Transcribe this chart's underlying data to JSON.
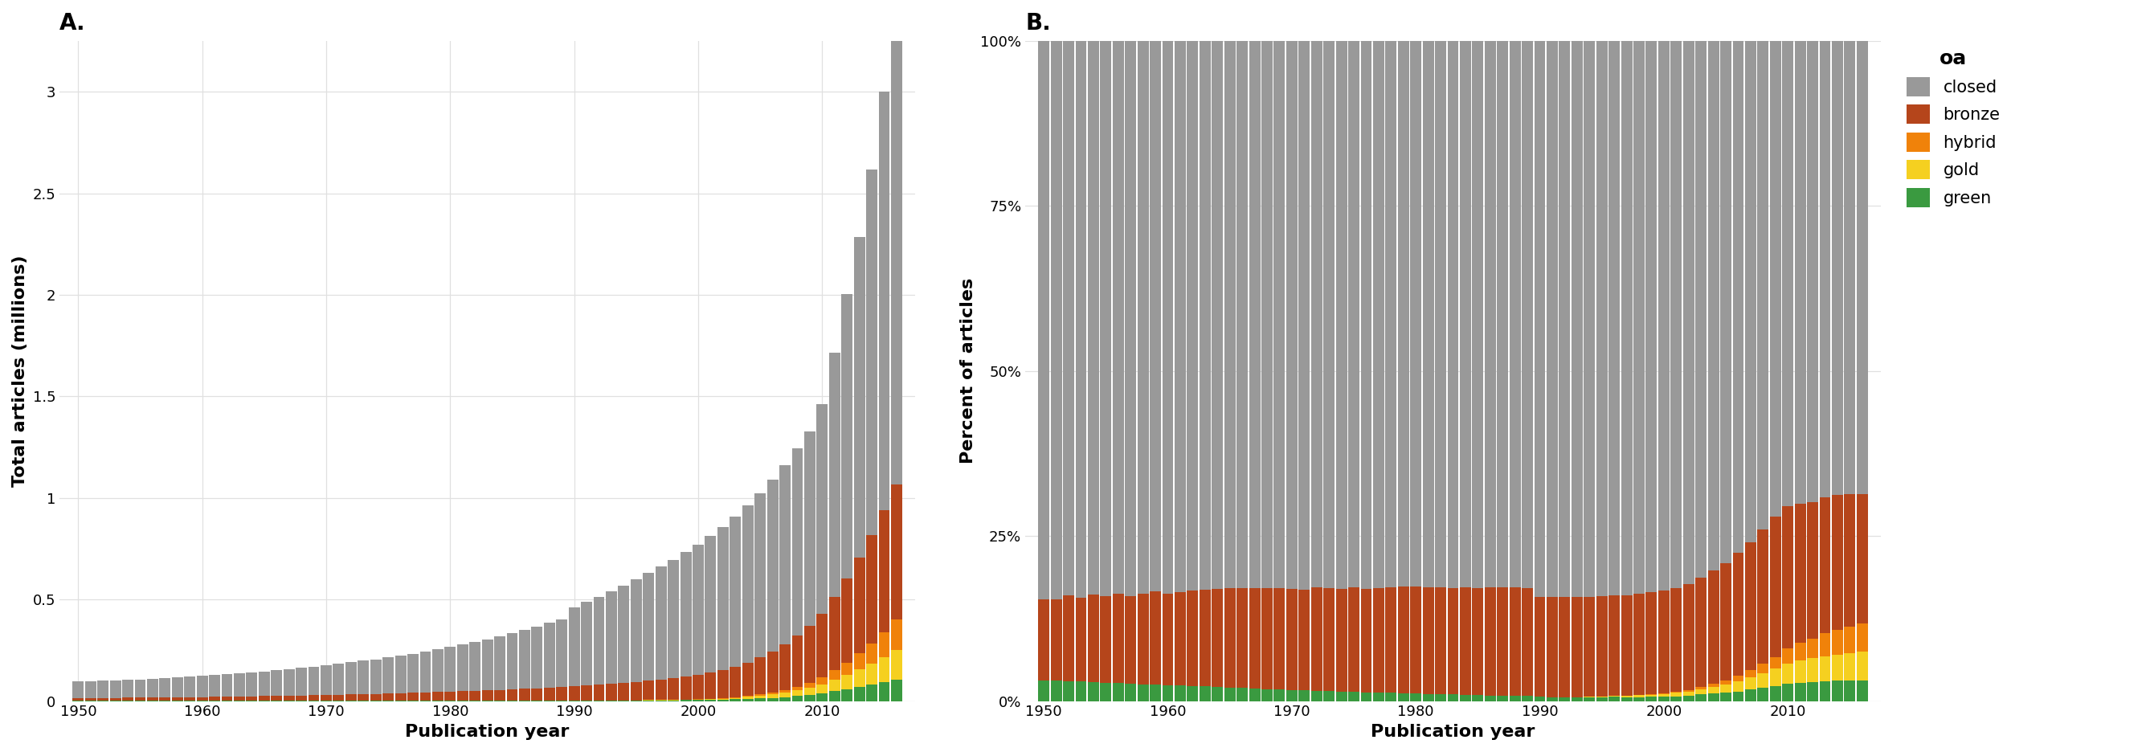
{
  "years": [
    1950,
    1951,
    1952,
    1953,
    1954,
    1955,
    1956,
    1957,
    1958,
    1959,
    1960,
    1961,
    1962,
    1963,
    1964,
    1965,
    1966,
    1967,
    1968,
    1969,
    1970,
    1971,
    1972,
    1973,
    1974,
    1975,
    1976,
    1977,
    1978,
    1979,
    1980,
    1981,
    1982,
    1983,
    1984,
    1985,
    1986,
    1987,
    1988,
    1989,
    1990,
    1991,
    1992,
    1993,
    1994,
    1995,
    1996,
    1997,
    1998,
    1999,
    2000,
    2001,
    2002,
    2003,
    2004,
    2005,
    2006,
    2007,
    2008,
    2009,
    2010,
    2011,
    2012,
    2013,
    2014,
    2015,
    2016
  ],
  "green": [
    0.003,
    0.003,
    0.003,
    0.003,
    0.003,
    0.003,
    0.003,
    0.003,
    0.003,
    0.003,
    0.003,
    0.003,
    0.003,
    0.003,
    0.003,
    0.003,
    0.003,
    0.003,
    0.003,
    0.003,
    0.003,
    0.003,
    0.003,
    0.003,
    0.003,
    0.003,
    0.003,
    0.003,
    0.003,
    0.003,
    0.003,
    0.003,
    0.003,
    0.003,
    0.003,
    0.003,
    0.003,
    0.003,
    0.003,
    0.003,
    0.003,
    0.003,
    0.003,
    0.003,
    0.003,
    0.003,
    0.004,
    0.004,
    0.004,
    0.005,
    0.005,
    0.006,
    0.007,
    0.009,
    0.011,
    0.013,
    0.016,
    0.02,
    0.025,
    0.03,
    0.038,
    0.048,
    0.058,
    0.068,
    0.08,
    0.092,
    0.105
  ],
  "gold": [
    0.0,
    0.0,
    0.0,
    0.0,
    0.0,
    0.0,
    0.0,
    0.0,
    0.0,
    0.0,
    0.0,
    0.0,
    0.0,
    0.0,
    0.0,
    0.0,
    0.0,
    0.0,
    0.0,
    0.0,
    0.0,
    0.0,
    0.0,
    0.0,
    0.0,
    0.0,
    0.0,
    0.0,
    0.0,
    0.0,
    0.0,
    0.0,
    0.0,
    0.0,
    0.0,
    0.0,
    0.0,
    0.0,
    0.0,
    0.0,
    0.0,
    0.0,
    0.0,
    0.0,
    0.001,
    0.001,
    0.001,
    0.001,
    0.002,
    0.002,
    0.003,
    0.004,
    0.005,
    0.007,
    0.01,
    0.013,
    0.017,
    0.022,
    0.028,
    0.035,
    0.045,
    0.058,
    0.072,
    0.088,
    0.105,
    0.125,
    0.148
  ],
  "hybrid": [
    0.0,
    0.0,
    0.0,
    0.0,
    0.0,
    0.0,
    0.0,
    0.0,
    0.0,
    0.0,
    0.0,
    0.0,
    0.0,
    0.0,
    0.0,
    0.0,
    0.0,
    0.0,
    0.0,
    0.0,
    0.0,
    0.0,
    0.0,
    0.0,
    0.0,
    0.0,
    0.0,
    0.0,
    0.0,
    0.0,
    0.0,
    0.0,
    0.0,
    0.0,
    0.0,
    0.0,
    0.0,
    0.0,
    0.0,
    0.0,
    0.0,
    0.0,
    0.0,
    0.0,
    0.0,
    0.0,
    0.0,
    0.0,
    0.0,
    0.001,
    0.001,
    0.001,
    0.002,
    0.003,
    0.004,
    0.006,
    0.009,
    0.013,
    0.018,
    0.024,
    0.033,
    0.045,
    0.06,
    0.078,
    0.098,
    0.122,
    0.148
  ],
  "bronze": [
    0.012,
    0.012,
    0.013,
    0.013,
    0.014,
    0.014,
    0.015,
    0.015,
    0.016,
    0.017,
    0.017,
    0.018,
    0.019,
    0.02,
    0.021,
    0.022,
    0.023,
    0.024,
    0.025,
    0.026,
    0.027,
    0.028,
    0.03,
    0.031,
    0.032,
    0.034,
    0.035,
    0.037,
    0.039,
    0.041,
    0.043,
    0.045,
    0.047,
    0.049,
    0.052,
    0.054,
    0.057,
    0.06,
    0.063,
    0.066,
    0.07,
    0.074,
    0.078,
    0.082,
    0.086,
    0.091,
    0.096,
    0.101,
    0.107,
    0.113,
    0.12,
    0.128,
    0.138,
    0.15,
    0.165,
    0.182,
    0.202,
    0.225,
    0.252,
    0.282,
    0.315,
    0.362,
    0.415,
    0.472,
    0.535,
    0.6,
    0.665
  ],
  "closed": [
    0.082,
    0.082,
    0.084,
    0.086,
    0.088,
    0.09,
    0.093,
    0.095,
    0.098,
    0.1,
    0.103,
    0.106,
    0.109,
    0.113,
    0.117,
    0.121,
    0.126,
    0.131,
    0.136,
    0.141,
    0.147,
    0.153,
    0.159,
    0.165,
    0.171,
    0.178,
    0.185,
    0.193,
    0.201,
    0.21,
    0.22,
    0.23,
    0.241,
    0.252,
    0.264,
    0.276,
    0.289,
    0.303,
    0.318,
    0.334,
    0.39,
    0.41,
    0.432,
    0.455,
    0.479,
    0.504,
    0.529,
    0.555,
    0.583,
    0.612,
    0.642,
    0.673,
    0.705,
    0.738,
    0.773,
    0.808,
    0.845,
    0.882,
    0.92,
    0.958,
    1.03,
    1.2,
    1.4,
    1.58,
    1.8,
    2.06,
    2.33
  ],
  "colors": {
    "green": "#3a9a40",
    "gold": "#f5d020",
    "hybrid": "#f0820a",
    "bronze": "#b5451b",
    "closed": "#999999"
  },
  "labels": {
    "green": "green",
    "gold": "gold",
    "hybrid": "hybrid",
    "bronze": "bronze",
    "closed": "closed"
  },
  "title_A": "A.",
  "title_B": "B.",
  "xlabel": "Publication year",
  "ylabel_A": "Total articles (millions)",
  "ylabel_B": "Percent of articles",
  "legend_title": "oa",
  "bg_color": "#ffffff",
  "grid_color": "#e0e0e0",
  "yticks_A": [
    0.0,
    0.5,
    1.0,
    1.5,
    2.0,
    2.5,
    3.0
  ],
  "yticks_B_labels": [
    "0%",
    "25%",
    "50%",
    "75%",
    "100%"
  ],
  "yticks_B_vals": [
    0.0,
    0.25,
    0.5,
    0.75,
    1.0
  ],
  "xticks": [
    1950,
    1960,
    1970,
    1980,
    1990,
    2000,
    2010
  ]
}
